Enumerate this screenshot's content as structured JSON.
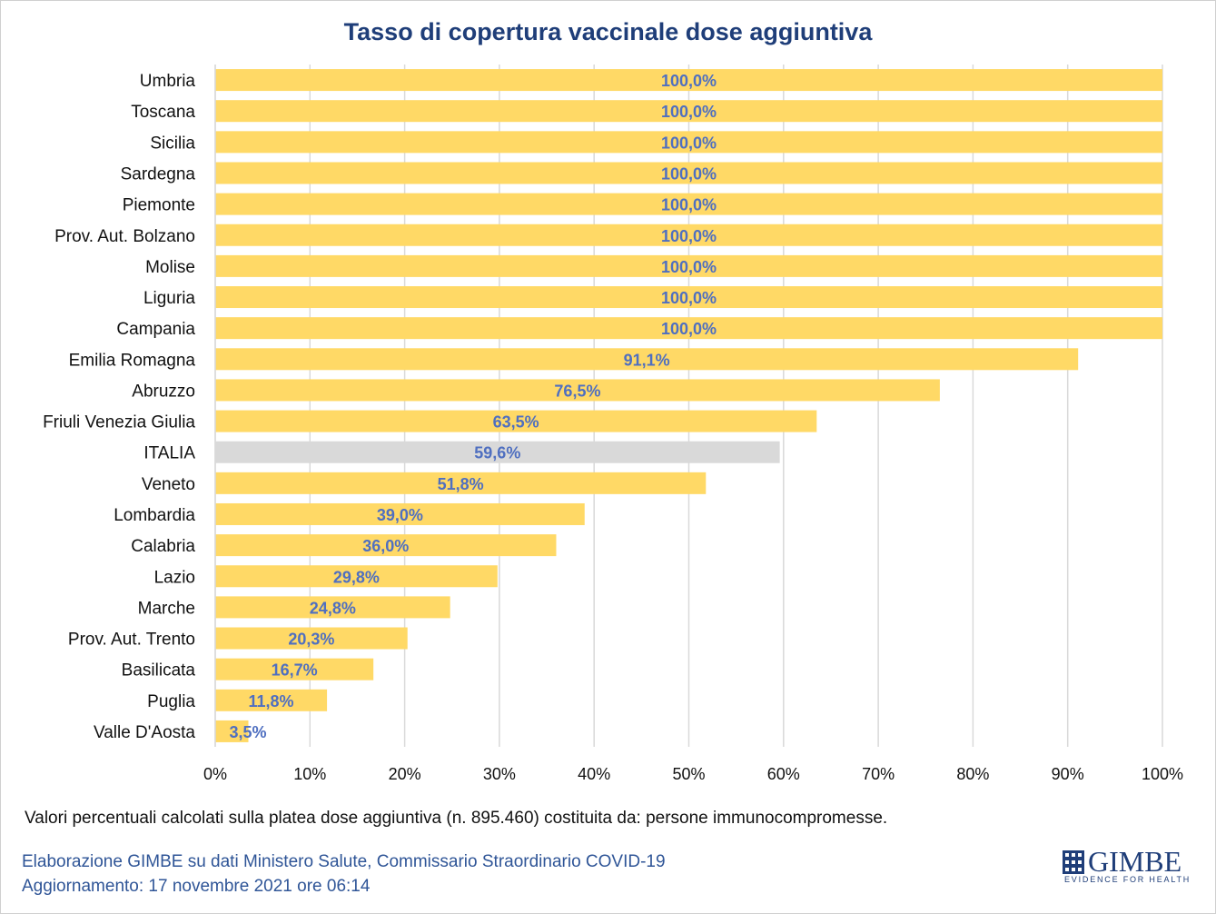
{
  "chart_data": {
    "type": "bar",
    "orientation": "horizontal",
    "title": "Tasso di copertura vaccinale dose aggiuntiva",
    "categories": [
      "Umbria",
      "Toscana",
      "Sicilia",
      "Sardegna",
      "Piemonte",
      "Prov. Aut. Bolzano",
      "Molise",
      "Liguria",
      "Campania",
      "Emilia Romagna",
      "Abruzzo",
      "Friuli Venezia Giulia",
      "ITALIA",
      "Veneto",
      "Lombardia",
      "Calabria",
      "Lazio",
      "Marche",
      "Prov. Aut. Trento",
      "Basilicata",
      "Puglia",
      "Valle D'Aosta"
    ],
    "values": [
      100.0,
      100.0,
      100.0,
      100.0,
      100.0,
      100.0,
      100.0,
      100.0,
      100.0,
      91.1,
      76.5,
      63.5,
      59.6,
      51.8,
      39.0,
      36.0,
      29.8,
      24.8,
      20.3,
      16.7,
      11.8,
      3.5
    ],
    "data_labels": [
      "100,0%",
      "100,0%",
      "100,0%",
      "100,0%",
      "100,0%",
      "100,0%",
      "100,0%",
      "100,0%",
      "100,0%",
      "91,1%",
      "76,5%",
      "63,5%",
      "59,6%",
      "51,8%",
      "39,0%",
      "36,0%",
      "29,8%",
      "24,8%",
      "20,3%",
      "16,7%",
      "11,8%",
      "3,5%"
    ],
    "highlight_category": "ITALIA",
    "xlim": [
      0,
      100
    ],
    "x_ticks": [
      "0%",
      "10%",
      "20%",
      "30%",
      "40%",
      "50%",
      "60%",
      "70%",
      "80%",
      "90%",
      "100%"
    ],
    "grid": "vertical",
    "colors": {
      "bar": "#ffd966",
      "highlight": "#d9d9d9",
      "label": "#4f6fc0",
      "grid": "#d9d9d9",
      "title": "#1f3e79"
    }
  },
  "footnote": "Valori percentuali calcolati sulla platea dose aggiuntiva (n. 895.460) costituita da: persone immunocompromesse.",
  "credits": {
    "line1": "Elaborazione GIMBE su dati Ministero Salute, Commissario Straordinario COVID-19",
    "line2": "Aggiornamento: 17 novembre 2021 ore 06:14"
  },
  "logo": {
    "name": "GIMBE",
    "tagline": "EVIDENCE FOR HEALTH",
    "icon": "gimbe-grid-icon"
  }
}
